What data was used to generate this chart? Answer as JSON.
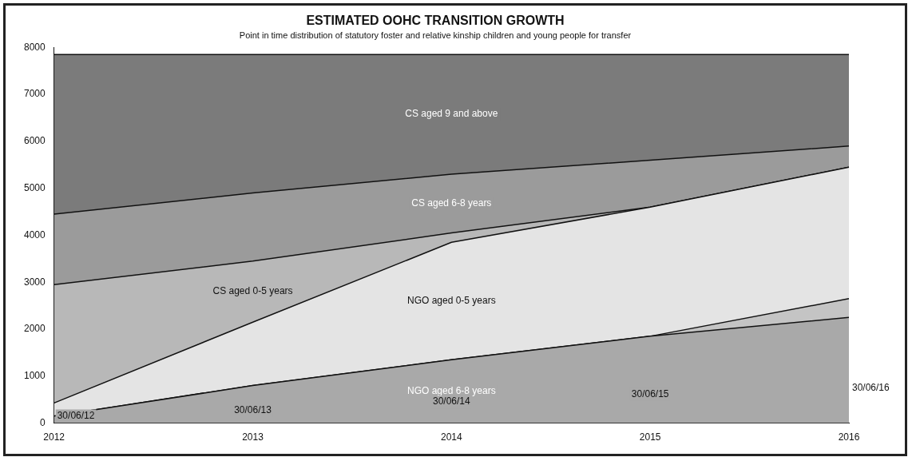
{
  "chart_data": {
    "type": "area",
    "stacked": true,
    "title": "ESTIMATED OOHC TRANSITION GROWTH",
    "subtitle": "Point in time distribution of statutory foster and relative kinship children and young people for transfer",
    "categories": [
      "2012",
      "2013",
      "2014",
      "2015",
      "2016"
    ],
    "series": [
      {
        "name": "NGO aged 6-8 years",
        "color": "#a9a9a9",
        "values": [
          150,
          800,
          1350,
          1850,
          2250
        ]
      },
      {
        "color": "#c4c4c4",
        "values": [
          0,
          0,
          0,
          0,
          400
        ]
      },
      {
        "name": "NGO aged 0-5 years",
        "color": "#e4e4e4",
        "values": [
          280,
          1350,
          2500,
          2750,
          2800
        ]
      },
      {
        "name": "CS aged 0-5 years",
        "color": "#b8b8b8",
        "values": [
          2520,
          1300,
          200,
          0,
          0
        ]
      },
      {
        "name": "CS aged 6-8 years",
        "color": "#9b9b9b",
        "values": [
          1500,
          1450,
          1250,
          1000,
          450
        ]
      },
      {
        "name": "CS aged 9 and above",
        "color": "#7b7b7b",
        "values": [
          3400,
          2950,
          2550,
          2250,
          1950
        ]
      }
    ],
    "ylim": [
      0,
      8000
    ],
    "yticks": [
      0,
      1000,
      2000,
      3000,
      4000,
      5000,
      6000,
      7000,
      8000
    ],
    "grid": false,
    "legend": false,
    "annotations": [
      "30/06/12",
      "30/06/13",
      "30/06/14",
      "30/06/15",
      "30/06/16"
    ]
  }
}
